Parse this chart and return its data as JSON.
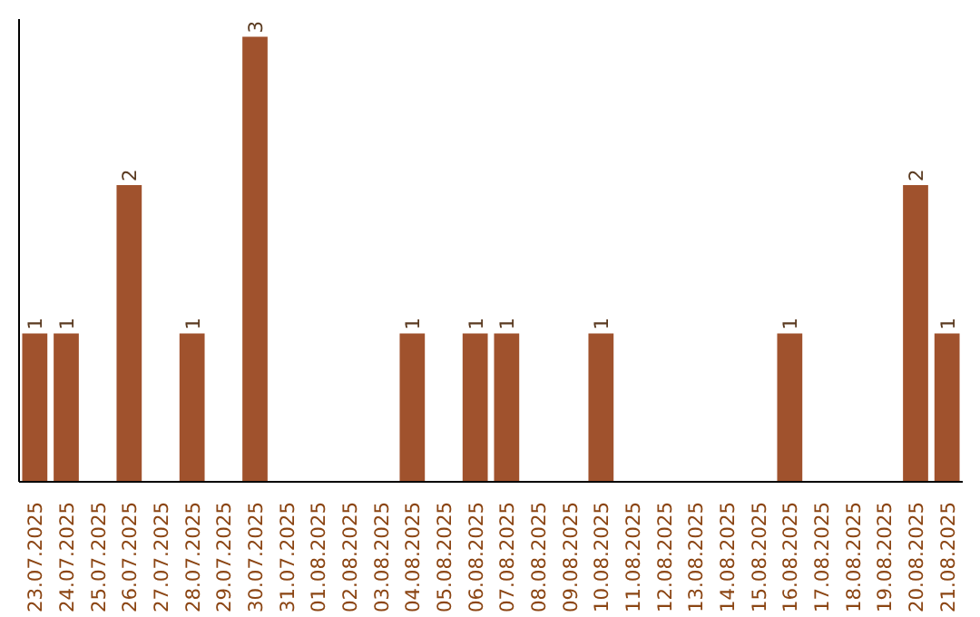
{
  "chart_data": {
    "type": "bar",
    "categories": [
      "23.07.2025",
      "24.07.2025",
      "25.07.2025",
      "26.07.2025",
      "27.07.2025",
      "28.07.2025",
      "29.07.2025",
      "30.07.2025",
      "31.07.2025",
      "01.08.2025",
      "02.08.2025",
      "03.08.2025",
      "04.08.2025",
      "05.08.2025",
      "06.08.2025",
      "07.08.2025",
      "08.08.2025",
      "09.08.2025",
      "10.08.2025",
      "11.08.2025",
      "12.08.2025",
      "13.08.2025",
      "14.08.2025",
      "15.08.2025",
      "16.08.2025",
      "17.08.2025",
      "18.08.2025",
      "19.08.2025",
      "20.08.2025",
      "21.08.2025"
    ],
    "values": [
      1,
      1,
      0,
      2,
      0,
      1,
      0,
      3,
      0,
      0,
      0,
      0,
      1,
      0,
      1,
      1,
      0,
      0,
      1,
      0,
      0,
      0,
      0,
      0,
      1,
      0,
      0,
      0,
      2,
      1
    ],
    "value_labels": [
      "1",
      "1",
      null,
      "2",
      null,
      "1",
      null,
      "3",
      null,
      null,
      null,
      null,
      "1",
      null,
      "1",
      "1",
      null,
      null,
      "1",
      null,
      null,
      null,
      null,
      null,
      "1",
      null,
      null,
      null,
      "2",
      "1"
    ],
    "color": "#a0522d",
    "ylim": [
      0,
      3.12
    ],
    "tick_labels": "x",
    "grid": false
  }
}
